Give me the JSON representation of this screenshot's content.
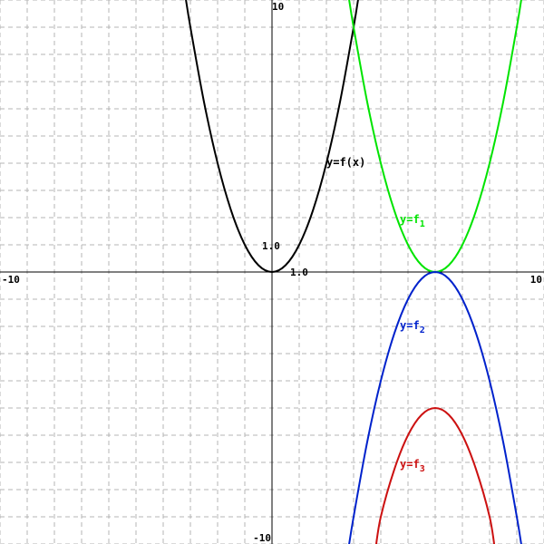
{
  "chart_data": {
    "type": "line",
    "xlim": [
      -10,
      10
    ],
    "ylim": [
      -10,
      10
    ],
    "grid": true,
    "grid_step": 1,
    "colors": {
      "background": "#ffffff",
      "grid": "#b4b4b4",
      "axes": "#000000"
    },
    "tick_labels": {
      "x_min": "-10",
      "x_max": "10",
      "y_min": "-10",
      "y_max": "10",
      "x_unit": "1.0",
      "y_unit": "1.0"
    },
    "series": [
      {
        "key": "f",
        "label_main": "y=f(x)",
        "label_sub": "",
        "color": "#000000",
        "x": [
          -3.2,
          -3,
          -2.5,
          -2,
          -1.5,
          -1,
          -0.5,
          0,
          0.5,
          1,
          1.5,
          2,
          2.5,
          3,
          3.2
        ],
        "y": [
          10.24,
          9,
          6.25,
          4,
          2.25,
          1,
          0.25,
          0,
          0.25,
          1,
          2.25,
          4,
          6.25,
          9,
          10.24
        ],
        "label_at": [
          2,
          3.9
        ]
      },
      {
        "key": "f1",
        "label_main": "y=f",
        "label_sub": "1",
        "color": "#00e400",
        "x": [
          2.8,
          3,
          3.5,
          4,
          4.5,
          5,
          5.5,
          6,
          6.5,
          7,
          7.5,
          8,
          8.5,
          9,
          9.2
        ],
        "y": [
          10.24,
          9,
          6.25,
          4,
          2.25,
          1,
          0.25,
          0,
          0.25,
          1,
          2.25,
          4,
          6.25,
          9,
          10.24
        ],
        "label_at": [
          4.7,
          1.8
        ]
      },
      {
        "key": "f2",
        "label_main": "y=f",
        "label_sub": "2",
        "color": "#0022cc",
        "x": [
          2.8,
          3,
          3.5,
          4,
          4.5,
          5,
          5.5,
          6,
          6.5,
          7,
          7.5,
          8,
          8.5,
          9,
          9.2
        ],
        "y": [
          -10.24,
          -9,
          -6.25,
          -4,
          -2.25,
          -1,
          -0.25,
          0,
          -0.25,
          -1,
          -2.25,
          -4,
          -6.25,
          -9,
          -10.24
        ],
        "label_at": [
          4.7,
          -2.1
        ]
      },
      {
        "key": "f3",
        "label_main": "y=f",
        "label_sub": "3",
        "color": "#cc1111",
        "x": [
          3.8,
          4,
          4.5,
          5,
          5.5,
          6,
          6.5,
          7,
          7.5,
          8,
          8.2
        ],
        "y": [
          -10.24,
          -9,
          -7.25,
          -6,
          -5.25,
          -5,
          -5.25,
          -6,
          -7.25,
          -9,
          -10.24
        ],
        "label_at": [
          4.7,
          -7.2
        ]
      }
    ]
  }
}
